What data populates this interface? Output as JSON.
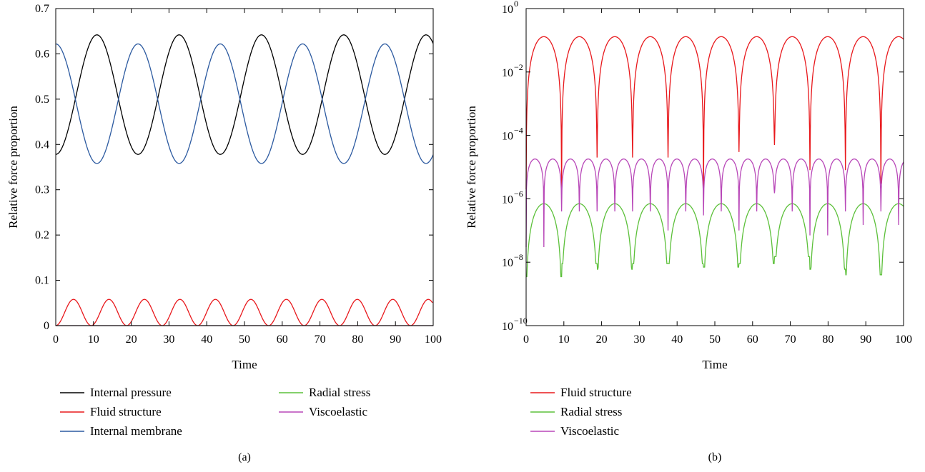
{
  "colors": {
    "internal_pressure": "#000000",
    "fluid_structure": "#e8181c",
    "internal_membrane": "#2c5aa0",
    "radial_stress": "#5cc03a",
    "viscoelastic": "#b847b8"
  },
  "chart_data": [
    {
      "type": "line",
      "panel_label": "(a)",
      "xlabel": "Time",
      "ylabel": "Relative force proportion",
      "xlim": [
        0,
        100
      ],
      "ylim": [
        0,
        0.7
      ],
      "xticks": [
        0,
        10,
        20,
        30,
        40,
        50,
        60,
        70,
        80,
        90,
        100
      ],
      "xtick_labels": [
        "0",
        "10",
        "20",
        "30",
        "40",
        "50",
        "60",
        "70",
        "80",
        "90",
        "100"
      ],
      "yticks": [
        0,
        0.1,
        0.2,
        0.3,
        0.4,
        0.5,
        0.6,
        0.7
      ],
      "ytick_labels": [
        "0",
        "0.1",
        "0.2",
        "0.3",
        "0.4",
        "0.5",
        "0.6",
        "0.7"
      ],
      "grid": false,
      "legend_placement": "below",
      "series": [
        {
          "name": "Internal pressure",
          "color_key": "internal_pressure",
          "x": [
            0,
            5.4,
            10.9,
            16.3,
            21.8,
            27.2,
            32.7,
            38.1,
            43.6,
            49.0,
            54.5,
            59.9,
            65.4,
            70.8,
            76.3,
            81.7,
            87.2,
            92.6,
            98.1,
            100
          ],
          "y": [
            0.378,
            0.51,
            0.642,
            0.51,
            0.378,
            0.51,
            0.642,
            0.51,
            0.378,
            0.51,
            0.642,
            0.51,
            0.378,
            0.51,
            0.642,
            0.51,
            0.378,
            0.51,
            0.642,
            0.63
          ]
        },
        {
          "name": "Fluid structure",
          "color_key": "fluid_structure",
          "x": [
            0,
            4.7,
            9.4,
            14.1,
            18.8,
            23.5,
            28.2,
            32.9,
            37.6,
            42.3,
            47.0,
            51.7,
            56.4,
            61.1,
            65.8,
            70.5,
            75.2,
            79.9,
            84.6,
            89.3,
            94.0,
            97.0,
            100
          ],
          "y": [
            0,
            0.058,
            0,
            0.058,
            0,
            0.058,
            0,
            0.058,
            0,
            0.058,
            0,
            0.058,
            0,
            0.058,
            0,
            0.058,
            0,
            0.058,
            0,
            0.058,
            0,
            0.035,
            0
          ]
        },
        {
          "name": "Internal membrane",
          "color_key": "internal_membrane",
          "x": [
            0,
            5.4,
            10.9,
            16.3,
            21.8,
            27.2,
            32.7,
            38.1,
            43.6,
            49.0,
            54.5,
            59.9,
            65.4,
            70.8,
            76.3,
            81.7,
            87.2,
            92.6,
            98.1,
            100
          ],
          "y": [
            0.622,
            0.49,
            0.358,
            0.49,
            0.622,
            0.49,
            0.358,
            0.49,
            0.622,
            0.49,
            0.358,
            0.49,
            0.622,
            0.49,
            0.358,
            0.49,
            0.622,
            0.49,
            0.358,
            0.37
          ]
        },
        {
          "name": "Radial stress",
          "color_key": "radial_stress",
          "x": [
            0,
            100
          ],
          "y": [
            0,
            0
          ]
        },
        {
          "name": "Viscoelastic",
          "color_key": "viscoelastic",
          "x": [
            0,
            100
          ],
          "y": [
            0,
            0
          ]
        }
      ]
    },
    {
      "type": "line",
      "panel_label": "(b)",
      "xlabel": "Time",
      "ylabel": "Relative force proportion",
      "xlim": [
        0,
        100
      ],
      "ylim": [
        1e-10,
        1
      ],
      "yscale": "log",
      "xticks": [
        0,
        10,
        20,
        30,
        40,
        50,
        60,
        70,
        80,
        90,
        100
      ],
      "xtick_labels": [
        "0",
        "10",
        "20",
        "30",
        "40",
        "50",
        "60",
        "70",
        "80",
        "90",
        "100"
      ],
      "yticks": [
        -10,
        -8,
        -6,
        -4,
        -2,
        0
      ],
      "ytick_labels": [
        "−10",
        "−8",
        "−6",
        "−4",
        "−2",
        "0"
      ],
      "ytick_base": "10",
      "grid": false,
      "legend_placement": "below",
      "series": [
        {
          "name": "Fluid structure",
          "color_key": "fluid_structure",
          "x": [
            0,
            4.7,
            9.4,
            14.1,
            18.8,
            23.5,
            28.2,
            32.9,
            37.6,
            42.3,
            47.0,
            51.7,
            56.4,
            61.1,
            65.8,
            70.5,
            75.2,
            79.9,
            84.6,
            89.3,
            94.0,
            100
          ],
          "y": [
            0.0003,
            0.13,
            2e-06,
            0.13,
            2e-05,
            0.13,
            6e-06,
            0.13,
            2e-05,
            0.13,
            2e-05,
            0.13,
            1.5e-06,
            0.13,
            3e-05,
            0.13,
            5e-05,
            0.13,
            8e-06,
            0.13,
            3e-06,
            0.1
          ],
          "minima": [
            2e-06,
            2e-05,
            6e-06,
            2e-05,
            2e-05,
            1.5e-06,
            3e-05,
            5e-05,
            8e-06,
            3e-06
          ]
        },
        {
          "name": "Radial stress",
          "color_key": "radial_stress",
          "x": [
            0,
            4.7,
            9.4,
            14.1,
            18.8,
            23.5,
            28.2,
            32.9,
            37.6,
            42.3,
            47.0,
            51.7,
            56.4,
            61.1,
            65.8,
            70.5,
            75.2,
            79.9,
            84.6,
            89.3,
            94.0,
            100
          ],
          "y": [
            4e-08,
            7e-07,
            3.5e-09,
            7e-07,
            9e-09,
            7e-07,
            6e-09,
            7e-07,
            9e-09,
            7e-07,
            9e-09,
            7e-07,
            7e-09,
            7e-07,
            9e-09,
            7e-07,
            1.5e-08,
            7e-07,
            6e-09,
            7e-07,
            4e-09,
            6e-07
          ],
          "minima": [
            3.5e-09,
            9e-09,
            6e-09,
            9e-09,
            9e-09,
            7e-09,
            9e-09,
            1.5e-08,
            6e-09,
            4e-09
          ]
        },
        {
          "name": "Viscoelastic",
          "color_key": "viscoelastic",
          "x": [
            0,
            2.5,
            7.0,
            9.4,
            11.8,
            16.3,
            18.8,
            21.2,
            25.7,
            28.2,
            30.6,
            35.1,
            37.6,
            40.0,
            44.5,
            47.0,
            49.4,
            53.9,
            56.4,
            58.8,
            63.3,
            65.8,
            68.2,
            72.7,
            75.2,
            77.6,
            82.1,
            84.6,
            87.0,
            91.5,
            94.0,
            96.4,
            100
          ],
          "y": [
            1.5e-06,
            1.8e-05,
            1.8e-05,
            3e-08,
            1.8e-05,
            1.8e-05,
            4e-07,
            1.8e-05,
            1.8e-05,
            6e-08,
            1.8e-05,
            1.8e-05,
            4e-07,
            1.8e-05,
            1.8e-05,
            1e-07,
            1.8e-05,
            1.8e-05,
            3e-07,
            1.8e-05,
            1.8e-05,
            1e-07,
            1.8e-05,
            1.8e-05,
            1.5e-06,
            1.8e-05,
            1.8e-05,
            7e-08,
            1.8e-05,
            1.8e-05,
            1.5e-07,
            1.8e-05,
            9e-06
          ],
          "minima": [
            3e-08,
            4e-07,
            6e-08,
            4e-07,
            1e-07,
            3e-07,
            1e-07,
            1.5e-06,
            7e-08,
            1.5e-07
          ]
        }
      ]
    }
  ]
}
